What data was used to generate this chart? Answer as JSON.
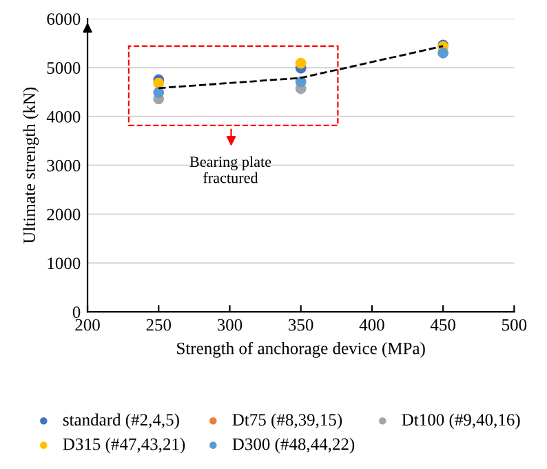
{
  "chart_data": {
    "type": "scatter",
    "xlabel": "Strength of anchorage device (MPa)",
    "ylabel": "Ultimate strength (kN)",
    "x": [
      250,
      350,
      450
    ],
    "xlim": [
      200,
      500
    ],
    "xticks": [
      200,
      250,
      300,
      350,
      400,
      450,
      500
    ],
    "ylim": [
      0,
      6000
    ],
    "yticks": [
      0,
      1000,
      2000,
      3000,
      4000,
      5000,
      6000
    ],
    "grid": "y",
    "legend": "bottom",
    "marker": "circle",
    "series": [
      {
        "name": "standard (#2,4,5)",
        "color": "#4472c4",
        "values": [
          4750,
          4990,
          5460
        ]
      },
      {
        "name": "Dt75 (#8,39,15)",
        "color": "#ed7d31",
        "values": [
          null,
          null,
          null
        ]
      },
      {
        "name": "Dt100 (#9,40,16)",
        "color": "#a5a5a5",
        "values": [
          4360,
          4570,
          null
        ]
      },
      {
        "name": "D315 (#47,43,21)",
        "color": "#ffc000",
        "values": [
          4680,
          5090,
          5430
        ]
      },
      {
        "name": "D300 (#48,44,22)",
        "color": "#5b9bd5",
        "values": [
          4490,
          4710,
          5300
        ]
      },
      {
        "type": "line",
        "color": "#000000",
        "line_style": "dashed",
        "marker": "none",
        "values": [
          4580,
          4790,
          5440
        ]
      }
    ],
    "annotations": [
      "Bearing plate\nfractured"
    ]
  }
}
